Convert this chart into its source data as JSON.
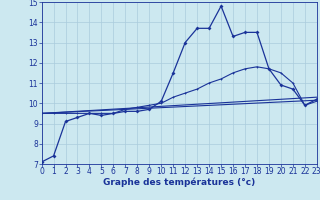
{
  "bg_color": "#cce8f0",
  "grid_color": "#aaccdd",
  "line_color": "#1a3399",
  "xlabel": "Graphe des températures (°c)",
  "tick_fontsize": 5.5,
  "xlabel_fontsize": 6.5,
  "xlim": [
    0,
    23
  ],
  "ylim": [
    7,
    15
  ],
  "yticks": [
    7,
    8,
    9,
    10,
    11,
    12,
    13,
    14,
    15
  ],
  "xticks": [
    0,
    1,
    2,
    3,
    4,
    5,
    6,
    7,
    8,
    9,
    10,
    11,
    12,
    13,
    14,
    15,
    16,
    17,
    18,
    19,
    20,
    21,
    22,
    23
  ],
  "series1_x": [
    0,
    1,
    2,
    3,
    4,
    5,
    6,
    7,
    8,
    9,
    10,
    11,
    12,
    13,
    14,
    15,
    16,
    17,
    18,
    19,
    20,
    21,
    22,
    23
  ],
  "series1_y": [
    7.1,
    7.4,
    9.1,
    9.3,
    9.5,
    9.4,
    9.5,
    9.6,
    9.6,
    9.7,
    10.1,
    11.5,
    13.0,
    13.7,
    13.7,
    14.8,
    13.3,
    13.5,
    13.5,
    11.7,
    10.9,
    10.7,
    9.9,
    10.2
  ],
  "series2_x": [
    0,
    1,
    2,
    3,
    4,
    5,
    6,
    7,
    8,
    9,
    10,
    11,
    12,
    13,
    14,
    15,
    16,
    17,
    18,
    19,
    20,
    21,
    22,
    23
  ],
  "series2_y": [
    9.5,
    9.5,
    9.5,
    9.5,
    9.5,
    9.5,
    9.5,
    9.7,
    9.8,
    9.9,
    10.0,
    10.3,
    10.5,
    10.7,
    11.0,
    11.2,
    11.5,
    11.7,
    11.8,
    11.7,
    11.5,
    11.0,
    9.9,
    10.1
  ],
  "series3_x": [
    0,
    23
  ],
  "series3_y": [
    9.5,
    10.3
  ],
  "series4_x": [
    0,
    23
  ],
  "series4_y": [
    9.5,
    10.15
  ]
}
